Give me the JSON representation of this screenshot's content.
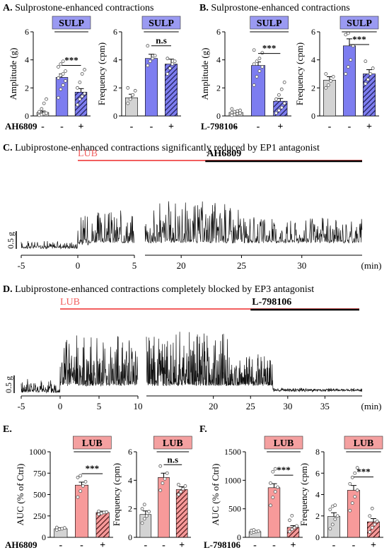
{
  "panel_titles": {
    "A": {
      "letter": "A.",
      "text": "Sulprostone-enhanced contractions"
    },
    "B": {
      "letter": "B.",
      "text": "Sulprostone-enhanced contractions"
    },
    "C": {
      "letter": "C.",
      "text": "Lubiprostone-enhanced contractions significantly reduced by EP1 antagonist"
    },
    "D": {
      "letter": "D.",
      "text": "Lubiprostone-enhanced contractions completely blocked by EP3 antagonist"
    },
    "E": {
      "letter": "E.",
      "text": ""
    },
    "F": {
      "letter": "F.",
      "text": ""
    }
  },
  "colors": {
    "ctrl": "#d3d3d3",
    "sulp": "#7d7df0",
    "sulp_box": "#9a9af2",
    "lub": "#f79a9a",
    "lub_box": "#f4a0a0",
    "lub_line": "#f25f5f",
    "antagonist_line": "#000000"
  },
  "chart_data": [
    {
      "id": "A-amp",
      "type": "bar",
      "ylabel": "Amplitude (g)",
      "ylim": [
        0,
        6
      ],
      "yticks": [
        "0",
        "2",
        "4",
        "6"
      ],
      "treatment_label": "SULP",
      "treatment_color": "#9a9af2",
      "antagonist_label": "AH6809",
      "antagonist_signs": [
        "-",
        "-",
        "+"
      ],
      "categories": [
        "Ctrl",
        "SULP",
        "SULP + AH6809"
      ],
      "values": [
        0.25,
        2.75,
        1.7
      ],
      "errors": [
        0.1,
        0.25,
        0.25
      ],
      "bar_colors": [
        "#d3d3d3",
        "#7d7df0",
        "#7d7df0"
      ],
      "hatched": [
        false,
        false,
        true
      ],
      "points": [
        [
          0.05,
          0.1,
          0.15,
          0.2,
          0.3,
          0.5,
          0.9,
          1.2
        ],
        [
          1.3,
          1.9,
          2.2,
          2.5,
          2.7,
          2.9,
          3.0,
          3.2,
          3.5,
          3.7,
          3.9
        ],
        [
          0.8,
          1.2,
          1.4,
          1.6,
          2.0,
          2.4,
          3.0,
          3.3
        ]
      ],
      "significance": [
        {
          "from": 1,
          "to": 2,
          "label": "***"
        }
      ]
    },
    {
      "id": "A-freq",
      "type": "bar",
      "ylabel": "Frequency (cpm)",
      "ylim": [
        0,
        6
      ],
      "yticks": [
        "0",
        "2",
        "4",
        "6"
      ],
      "treatment_label": "SULP",
      "treatment_color": "#9a9af2",
      "antagonist_label": "",
      "antagonist_signs": [
        "-",
        "-",
        "+"
      ],
      "categories": [
        "Ctrl",
        "SULP",
        "SULP + AH6809"
      ],
      "values": [
        1.3,
        4.1,
        3.7
      ],
      "errors": [
        0.25,
        0.3,
        0.35
      ],
      "bar_colors": [
        "#d3d3d3",
        "#7d7df0",
        "#7d7df0"
      ],
      "hatched": [
        false,
        false,
        true
      ],
      "points": [
        [
          0.9,
          1.2,
          1.5,
          1.8,
          2.0
        ],
        [
          3.6,
          3.9,
          4.1,
          4.3,
          5.0
        ],
        [
          3.0,
          3.4,
          3.7,
          3.9,
          4.1
        ]
      ],
      "significance": [
        {
          "from": 1,
          "to": 2,
          "label": "n.s"
        }
      ]
    },
    {
      "id": "B-amp",
      "type": "bar",
      "ylabel": "Amplitude (g)",
      "ylim": [
        0,
        6
      ],
      "yticks": [
        "0",
        "2",
        "4",
        "6"
      ],
      "treatment_label": "SULP",
      "treatment_color": "#9a9af2",
      "antagonist_label": "L-798106",
      "antagonist_signs": [
        "-",
        "-",
        "+"
      ],
      "categories": [
        "Ctrl",
        "SULP",
        "SULP + L-798106"
      ],
      "values": [
        0.25,
        3.6,
        1.05
      ],
      "errors": [
        0.08,
        0.25,
        0.2
      ],
      "bar_colors": [
        "#d3d3d3",
        "#7d7df0",
        "#7d7df0"
      ],
      "hatched": [
        false,
        false,
        true
      ],
      "points": [
        [
          0.05,
          0.1,
          0.15,
          0.2,
          0.25,
          0.3,
          0.35,
          0.4,
          0.5
        ],
        [
          2.2,
          2.8,
          3.2,
          3.5,
          3.7,
          3.9,
          4.1,
          4.5,
          4.7
        ],
        [
          0.2,
          0.4,
          0.6,
          0.9,
          1.2,
          1.5,
          1.9,
          2.4
        ]
      ],
      "significance": [
        {
          "from": 1,
          "to": 2,
          "label": "***"
        }
      ]
    },
    {
      "id": "B-freq",
      "type": "bar",
      "ylabel": "Frequency (cpm)",
      "ylim": [
        0,
        6
      ],
      "yticks": [
        "0",
        "2",
        "4",
        "6"
      ],
      "treatment_label": "SULP",
      "treatment_color": "#9a9af2",
      "antagonist_label": "",
      "antagonist_signs": [
        "-",
        "-",
        "+"
      ],
      "categories": [
        "Ctrl",
        "SULP",
        "SULP + L-798106"
      ],
      "values": [
        2.55,
        5.0,
        3.0
      ],
      "errors": [
        0.25,
        0.5,
        0.3
      ],
      "bar_colors": [
        "#d3d3d3",
        "#7d7df0",
        "#7d7df0"
      ],
      "hatched": [
        false,
        false,
        true
      ],
      "points": [
        [
          2.0,
          2.2,
          2.5,
          2.8,
          3.0
        ],
        [
          3.0,
          3.5,
          4.0,
          5.0,
          5.8,
          5.9
        ],
        [
          2.3,
          2.6,
          3.0,
          3.4,
          3.9
        ]
      ],
      "significance": [
        {
          "from": 1,
          "to": 2,
          "label": "***"
        }
      ]
    },
    {
      "id": "C-trace",
      "type": "line",
      "treatment_label": "LUB",
      "antagonist_label": "AH6809",
      "scale_label": "0.5 g",
      "xtick_labels": [
        "-5",
        "0",
        "5",
        "20",
        "25",
        "30",
        "(min)"
      ],
      "segments": [
        {
          "x_start": -5,
          "x_end": 5
        },
        {
          "x_start": 17,
          "x_end": 35
        }
      ],
      "lub_start_min": 0,
      "antagonist_start_min": 22
    },
    {
      "id": "D-trace",
      "type": "line",
      "treatment_label": "LUB",
      "antagonist_label": "L-798106",
      "scale_label": "0.5 g",
      "xtick_labels": [
        "-5",
        "0",
        "5",
        "10",
        "20",
        "25",
        "30",
        "35",
        "(min)"
      ],
      "segments": [
        {
          "x_start": -5,
          "x_end": 10
        },
        {
          "x_start": 11,
          "x_end": 40
        }
      ],
      "lub_start_min": 0,
      "antagonist_start_min": 25
    },
    {
      "id": "E-auc",
      "type": "bar",
      "ylabel": "AUC (% of Ctrl)",
      "ylim": [
        0,
        1000
      ],
      "yticks": [
        "0",
        "250",
        "500",
        "750",
        "1000"
      ],
      "treatment_label": "LUB",
      "treatment_color": "#f4a0a0",
      "antagonist_label": "AH6809",
      "antagonist_signs": [
        "-",
        "-",
        "+"
      ],
      "categories": [
        "Ctrl",
        "LUB",
        "LUB + AH6809"
      ],
      "values": [
        100,
        610,
        290
      ],
      "errors": [
        12,
        35,
        15
      ],
      "bar_colors": [
        "#d3d3d3",
        "#f79a9a",
        "#f79a9a"
      ],
      "hatched": [
        false,
        false,
        true
      ],
      "points": [
        [
          85,
          95,
          100,
          110,
          115
        ],
        [
          470,
          540,
          600,
          650,
          700,
          720
        ],
        [
          270,
          280,
          290,
          295,
          305
        ]
      ],
      "significance": [
        {
          "from": 1,
          "to": 2,
          "label": "***"
        }
      ]
    },
    {
      "id": "E-freq",
      "type": "bar",
      "ylabel": "Frequency (cpm)",
      "ylim": [
        0,
        6
      ],
      "yticks": [
        "0",
        "2",
        "4",
        "6"
      ],
      "treatment_label": "LUB",
      "treatment_color": "#f4a0a0",
      "antagonist_label": "",
      "antagonist_signs": [
        "-",
        "-",
        "+"
      ],
      "categories": [
        "Ctrl",
        "LUB",
        "LUB + AH6809"
      ],
      "values": [
        1.6,
        4.2,
        3.35
      ],
      "errors": [
        0.25,
        0.3,
        0.2
      ],
      "bar_colors": [
        "#d3d3d3",
        "#f79a9a",
        "#f79a9a"
      ],
      "hatched": [
        false,
        false,
        true
      ],
      "points": [
        [
          1.0,
          1.3,
          1.5,
          1.8,
          2.0,
          2.3
        ],
        [
          3.3,
          3.8,
          4.1,
          4.5,
          5.0
        ],
        [
          3.0,
          3.2,
          3.4,
          3.6,
          3.7
        ]
      ],
      "significance": [
        {
          "from": 1,
          "to": 2,
          "label": "n.s"
        }
      ]
    },
    {
      "id": "F-auc",
      "type": "bar",
      "ylabel": "AUC (% of Ctrl)",
      "ylim": [
        0,
        1500
      ],
      "yticks": [
        "0",
        "500",
        "1000",
        "1500"
      ],
      "treatment_label": "LUB",
      "treatment_color": "#f4a0a0",
      "antagonist_label": "L-798106",
      "antagonist_signs": [
        "-",
        "-",
        "+"
      ],
      "categories": [
        "Ctrl",
        "LUB",
        "LUB + L-798106"
      ],
      "values": [
        100,
        870,
        175
      ],
      "errors": [
        15,
        70,
        30
      ],
      "bar_colors": [
        "#d3d3d3",
        "#f79a9a",
        "#f79a9a"
      ],
      "hatched": [
        false,
        false,
        true
      ],
      "points": [
        [
          80,
          90,
          100,
          110,
          120,
          130
        ],
        [
          560,
          700,
          800,
          880,
          950,
          1150,
          1200
        ],
        [
          100,
          140,
          170,
          200,
          300,
          380
        ]
      ],
      "significance": [
        {
          "from": 1,
          "to": 2,
          "label": "***"
        }
      ]
    },
    {
      "id": "F-freq",
      "type": "bar",
      "ylabel": "Frequency (cpm)",
      "ylim": [
        0,
        8
      ],
      "yticks": [
        "0",
        "2",
        "4",
        "6",
        "8"
      ],
      "treatment_label": "LUB",
      "treatment_color": "#f4a0a0",
      "antagonist_label": "",
      "antagonist_signs": [
        "-",
        "-",
        "+"
      ],
      "categories": [
        "Ctrl",
        "LUB",
        "LUB + L-798106"
      ],
      "values": [
        1.95,
        4.4,
        1.45
      ],
      "errors": [
        0.35,
        0.45,
        0.3
      ],
      "bar_colors": [
        "#d3d3d3",
        "#f79a9a",
        "#f79a9a"
      ],
      "hatched": [
        false,
        false,
        true
      ],
      "points": [
        [
          0.8,
          1.2,
          1.7,
          2.0,
          2.6,
          2.9,
          3.0
        ],
        [
          2.5,
          3.2,
          3.8,
          4.4,
          5.0,
          5.6,
          6.0,
          6.5
        ],
        [
          0.5,
          0.9,
          1.2,
          1.5,
          2.0,
          2.7
        ]
      ],
      "significance": [
        {
          "from": 1,
          "to": 2,
          "label": "***"
        }
      ]
    }
  ]
}
